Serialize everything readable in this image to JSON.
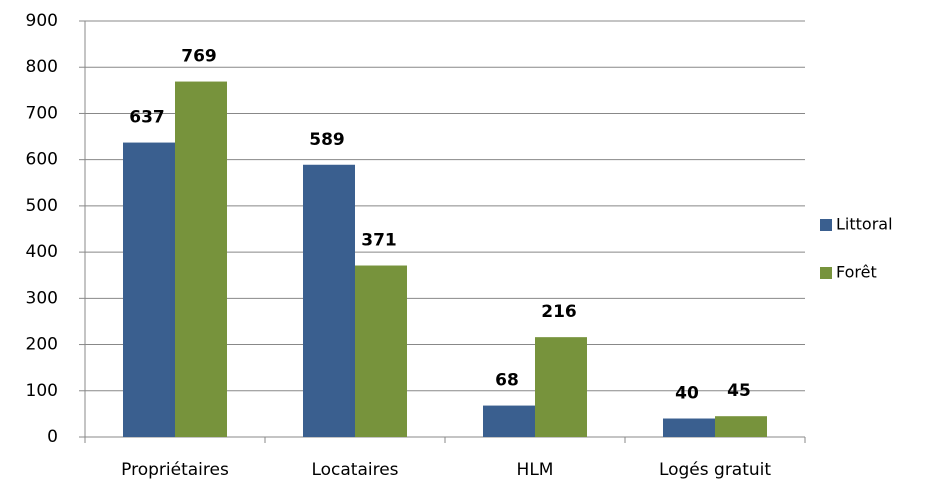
{
  "chart_data": {
    "type": "bar",
    "categories": [
      "Propriétaires",
      "Locataires",
      "HLM",
      "Logés gratuit"
    ],
    "series": [
      {
        "name": "Littoral",
        "color": "#3a5f8f",
        "values": [
          637,
          589,
          68,
          40
        ]
      },
      {
        "name": "Forêt",
        "color": "#77933c",
        "values": [
          769,
          371,
          216,
          45
        ]
      }
    ],
    "ylim": [
      0,
      900
    ],
    "yticks": [
      0,
      100,
      200,
      300,
      400,
      500,
      600,
      700,
      800,
      900
    ],
    "grid": true,
    "legend": "right"
  }
}
